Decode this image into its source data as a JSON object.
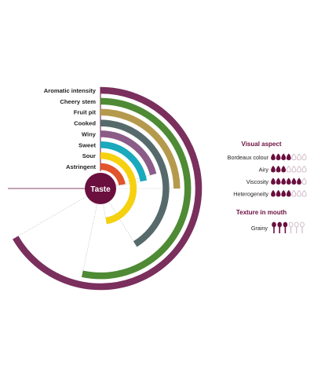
{
  "chart_data": {
    "type": "radial-bar",
    "center_label": "Taste",
    "max_degrees": 360,
    "taste": [
      {
        "label": "Aromatic intensity",
        "angle": 240,
        "color": "#7a2f5d"
      },
      {
        "label": "Cheery stem",
        "angle": 192,
        "color": "#4f8a35"
      },
      {
        "label": "Fruit pit",
        "angle": 90,
        "color": "#b59a4d"
      },
      {
        "label": "Cooked",
        "angle": 148,
        "color": "#566a6c"
      },
      {
        "label": "Winy",
        "angle": 75,
        "color": "#8a5c87"
      },
      {
        "label": "Sweet",
        "angle": 80,
        "color": "#1aa9bd"
      },
      {
        "label": "Sour",
        "angle": 170,
        "color": "#f5d10f"
      },
      {
        "label": "Astringent",
        "angle": 80,
        "color": "#e1542c"
      }
    ],
    "visual_aspect": {
      "title": "Visual aspect",
      "max": 7,
      "items": [
        {
          "label": "Bordeaux colour",
          "value": 4
        },
        {
          "label": "Airy",
          "value": 3
        },
        {
          "label": "Viscosity",
          "value": 6
        },
        {
          "label": "Heterogeneity",
          "value": 4
        }
      ]
    },
    "texture": {
      "title": "Texture in mouth",
      "max": 6,
      "items": [
        {
          "label": "Grainy",
          "value": 3
        }
      ]
    }
  },
  "colors": {
    "accent": "#6b0f3f",
    "empty_icon": "#c9aebe",
    "guide": "#b9b9b9"
  }
}
